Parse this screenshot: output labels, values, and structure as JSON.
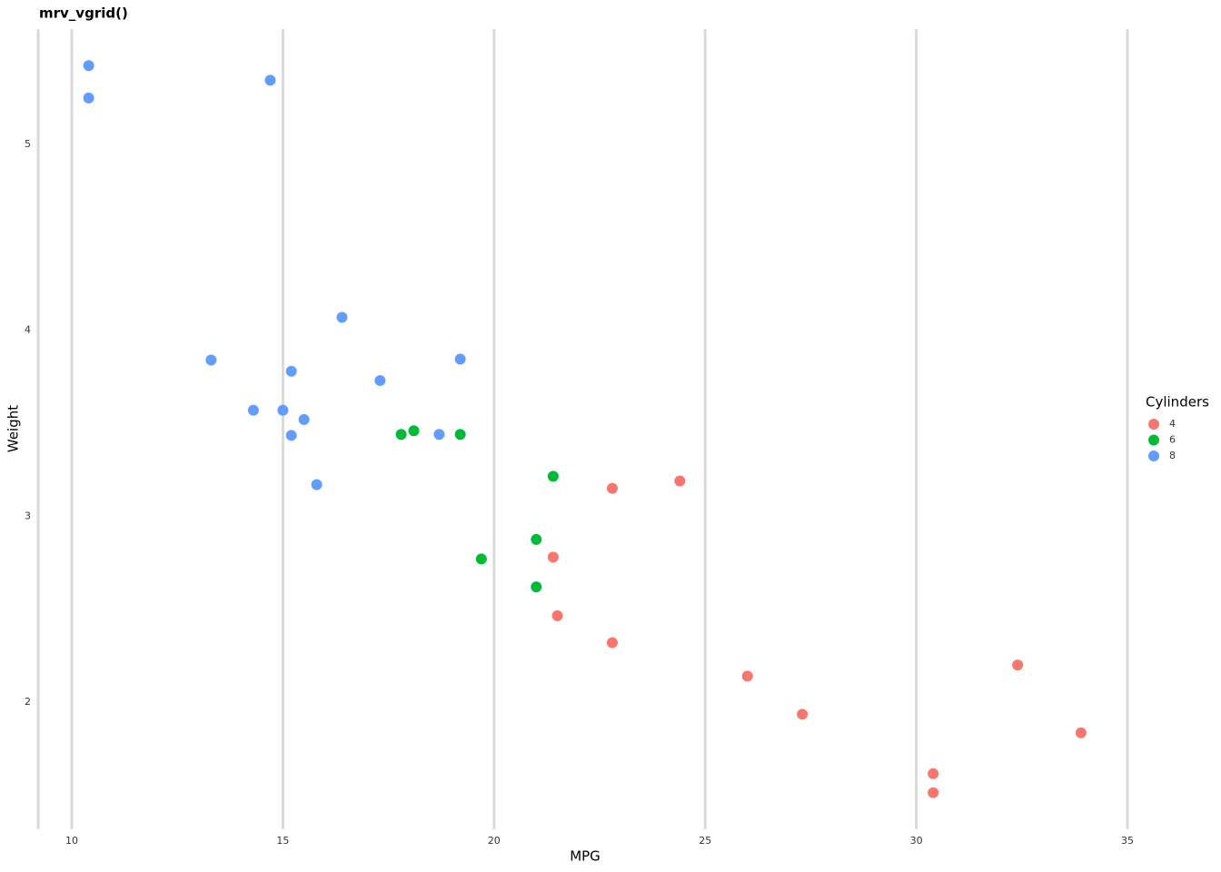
{
  "chart_data": {
    "type": "scatter",
    "title": "mrv_vgrid()",
    "x_label": "MPG",
    "y_label": "Weight",
    "legend_title": "Cylinders",
    "legend": "right",
    "grid": "vertical",
    "xlim": [
      9.225,
      35.075
    ],
    "ylim": [
      1.3175,
      5.6196
    ],
    "xticks": [
      10,
      15,
      20,
      25,
      30,
      35
    ],
    "yticks": [
      2,
      3,
      4,
      5
    ],
    "series": [
      {
        "name": "4",
        "color": "#F8766D",
        "x": [
          22.8,
          24.4,
          22.8,
          32.4,
          30.4,
          33.9,
          21.5,
          27.3,
          26.0,
          30.4,
          21.4
        ],
        "values": [
          2.32,
          3.19,
          3.15,
          2.2,
          1.615,
          1.835,
          2.465,
          1.935,
          2.14,
          1.513,
          2.78
        ]
      },
      {
        "name": "6",
        "color": "#00BA38",
        "x": [
          21.0,
          21.0,
          21.4,
          18.1,
          19.2,
          17.8,
          19.7
        ],
        "values": [
          2.62,
          2.875,
          3.215,
          3.46,
          3.44,
          3.44,
          2.77
        ]
      },
      {
        "name": "8",
        "color": "#619CFF",
        "x": [
          18.7,
          14.3,
          16.4,
          17.3,
          15.2,
          10.4,
          10.4,
          14.7,
          15.5,
          15.2,
          13.3,
          19.2,
          15.8,
          15.0
        ],
        "values": [
          3.44,
          3.57,
          4.07,
          3.73,
          3.78,
          5.25,
          5.424,
          5.345,
          3.52,
          3.435,
          3.84,
          3.845,
          3.17,
          3.57
        ]
      }
    ]
  }
}
